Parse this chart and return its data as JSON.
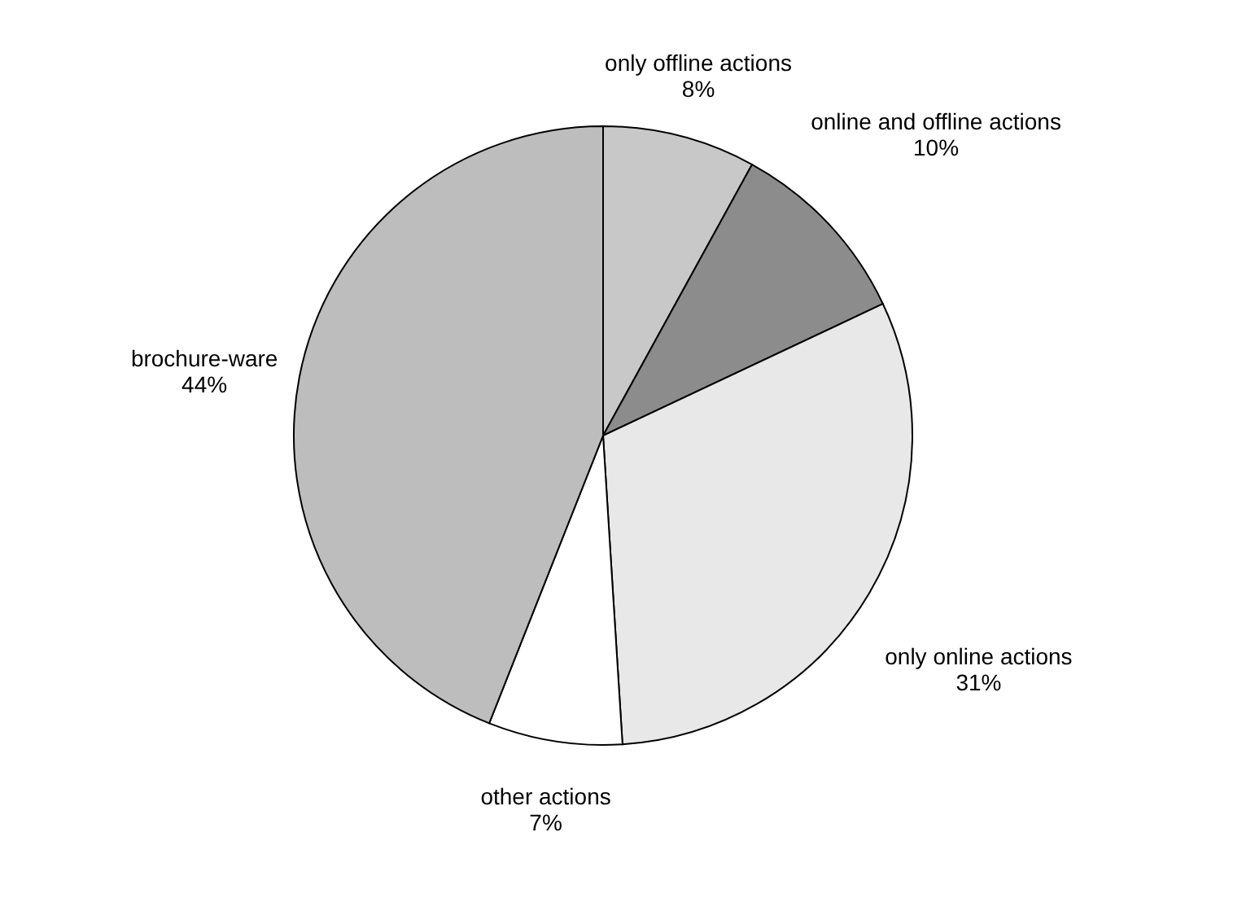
{
  "chart_data": {
    "type": "pie",
    "categories": [
      "only offline actions",
      "online and offline actions",
      "only online actions",
      "other actions",
      "brochure-ware"
    ],
    "values": [
      8,
      10,
      31,
      7,
      44
    ],
    "value_labels": [
      "8%",
      "10%",
      "31%",
      "7%",
      "44%"
    ],
    "colors": [
      "#c8c8c8",
      "#8c8c8c",
      "#e8e8e8",
      "#ffffff",
      "#bdbdbd"
    ],
    "legend": false
  }
}
